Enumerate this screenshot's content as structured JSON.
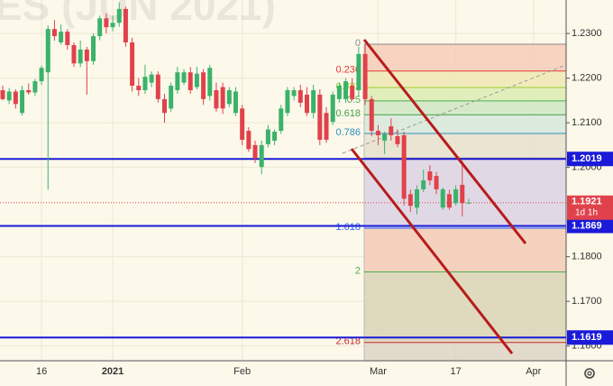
{
  "chart_data": {
    "type": "candlestick",
    "watermark": "ES (JUN 2021)",
    "categories": [
      null,
      null,
      null,
      null,
      null,
      null,
      "16",
      null,
      null,
      null,
      null,
      null,
      null,
      null,
      null,
      null,
      null,
      "2021",
      null,
      null,
      null,
      null,
      null,
      null,
      null,
      null,
      null,
      null,
      null,
      null,
      null,
      null,
      null,
      null,
      null,
      null,
      null,
      "Feb",
      null,
      null,
      null,
      null,
      null,
      null,
      null,
      null,
      null,
      null,
      null,
      null,
      null,
      null,
      null,
      null,
      null,
      null,
      null,
      null,
      "Mar",
      null,
      null,
      null,
      null,
      null,
      null,
      null,
      null,
      null,
      null,
      null,
      "17",
      null,
      null,
      null,
      null,
      null,
      null,
      null,
      null,
      null,
      null,
      null,
      "Apr"
    ],
    "open": [
      1.2173,
      1.215,
      1.217,
      1.2122,
      1.2173,
      1.2168,
      1.2193,
      1.2213,
      1.231,
      1.228,
      1.2304,
      1.2274,
      1.2233,
      1.2264,
      1.2238,
      1.2294,
      1.2334,
      1.2314,
      1.2324,
      1.2355,
      1.228,
      1.2183,
      1.2173,
      1.219,
      1.2208,
      1.2153,
      1.2132,
      1.2173,
      1.219,
      1.2213,
      1.218,
      1.2213,
      1.216,
      1.2173,
      1.218,
      1.2142,
      1.2122,
      1.2132,
      1.2082,
      1.205,
      1.2001,
      1.2052,
      1.206,
      1.2082,
      1.2122,
      1.216,
      1.2173,
      1.2163,
      1.2122,
      1.2163,
      1.2122,
      1.2102,
      1.2153,
      1.2153,
      1.2183,
      1.2173,
      1.2254,
      1.2153,
      1.2082,
      1.206,
      1.2092,
      1.207,
      1.2072,
      1.194,
      1.191,
      1.1951,
      1.1991,
      1.1981,
      1.191,
      1.194,
      1.192,
      1.1961,
      1.192,
      null,
      null,
      null,
      null,
      null,
      null,
      null,
      null,
      null,
      null
    ],
    "high": [
      1.2183,
      1.2178,
      1.2175,
      1.2183,
      1.2188,
      1.2198,
      1.2228,
      1.2318,
      1.233,
      1.232,
      1.231,
      1.228,
      1.2284,
      1.227,
      1.23,
      1.234,
      1.2345,
      1.234,
      1.237,
      1.236,
      1.229,
      1.22,
      1.223,
      1.2215,
      1.2215,
      1.2165,
      1.219,
      1.2225,
      1.222,
      1.2225,
      1.2225,
      1.222,
      1.223,
      1.219,
      1.219,
      1.218,
      1.218,
      1.214,
      1.209,
      1.206,
      1.206,
      1.2095,
      1.2085,
      1.214,
      1.218,
      1.218,
      1.2185,
      1.218,
      1.2185,
      1.2175,
      1.2135,
      1.217,
      1.219,
      1.22,
      1.22,
      1.227,
      1.2275,
      1.216,
      1.2095,
      1.208,
      1.211,
      1.2085,
      1.208,
      1.195,
      1.196,
      1.1995,
      1.2005,
      1.199,
      1.1955,
      1.195,
      1.196,
      1.2015,
      1.193,
      null,
      null,
      null,
      null,
      null,
      null,
      null,
      null,
      null,
      null
    ],
    "low": [
      1.215,
      1.2142,
      1.2132,
      1.2116,
      1.2163,
      1.216,
      1.2185,
      1.195,
      1.2284,
      1.2275,
      1.2264,
      1.2225,
      1.2225,
      1.2163,
      1.223,
      1.2285,
      1.23,
      1.2305,
      1.2315,
      1.227,
      1.217,
      1.216,
      1.2165,
      1.218,
      1.2145,
      1.21,
      1.2125,
      1.2165,
      1.2185,
      1.2165,
      1.2175,
      1.214,
      1.215,
      1.2125,
      1.212,
      1.2135,
      1.2115,
      1.205,
      1.2035,
      1.201,
      1.1985,
      1.2045,
      1.205,
      1.2075,
      1.2115,
      1.215,
      1.2135,
      1.2115,
      1.211,
      1.205,
      1.2055,
      1.2095,
      1.2145,
      1.2145,
      1.215,
      1.216,
      1.214,
      1.207,
      1.205,
      1.203,
      1.206,
      1.2045,
      1.1915,
      1.19,
      1.1895,
      1.1945,
      1.196,
      1.194,
      1.1905,
      1.1905,
      1.1915,
      1.189,
      1.1918,
      null,
      null,
      null,
      null,
      null,
      null,
      null,
      null,
      null,
      null
    ],
    "close": [
      1.2153,
      1.217,
      1.2142,
      1.2173,
      1.2168,
      1.2193,
      1.2223,
      1.231,
      1.2294,
      1.2304,
      1.2274,
      1.2233,
      1.2264,
      1.2238,
      1.2294,
      1.2334,
      1.2314,
      1.2324,
      1.2355,
      1.228,
      1.2183,
      1.2173,
      1.2203,
      1.2208,
      1.2153,
      1.2122,
      1.2183,
      1.2213,
      1.2213,
      1.2173,
      1.221,
      1.2153,
      1.2223,
      1.2132,
      1.2132,
      1.2173,
      1.217,
      1.2062,
      1.2041,
      1.202,
      1.205,
      1.2085,
      1.208,
      1.2132,
      1.2173,
      1.2173,
      1.2145,
      1.2122,
      1.2173,
      1.2062,
      1.2062,
      1.2163,
      1.2183,
      1.2193,
      1.2153,
      1.2254,
      1.2153,
      1.2082,
      1.2072,
      1.2075,
      1.2072,
      1.2052,
      1.193,
      1.1914,
      1.1951,
      1.1971,
      1.1971,
      1.1951,
      1.1951,
      1.191,
      1.1951,
      1.192,
      1.1921,
      null,
      null,
      null,
      null,
      null,
      null,
      null,
      null,
      null,
      null
    ],
    "up_color": "#3bb26b",
    "down_color": "#e0424b",
    "ylim": [
      1.1567,
      1.2375
    ],
    "yticks": [
      {
        "value": 1.23,
        "label": "1.2300"
      },
      {
        "value": 1.22,
        "label": "1.2200"
      },
      {
        "value": 1.21,
        "label": "1.2100"
      },
      {
        "value": 1.2,
        "label": "1.2000"
      },
      {
        "value": 1.18,
        "label": "1.1800"
      },
      {
        "value": 1.17,
        "label": "1.1700"
      },
      {
        "value": 1.16,
        "label": "1.1600"
      }
    ],
    "grid": true,
    "fib_levels": [
      {
        "ratio": 0,
        "price": 1.2276,
        "color": "#8a8a8a",
        "fill": "#f6cdb8"
      },
      {
        "ratio": 0.236,
        "price": 1.2216,
        "color": "#e53935",
        "fill": "#efe9b4"
      },
      {
        "ratio": 0.382,
        "price": 1.2179,
        "color": "#9ccc2f",
        "fill": "#dcecb4"
      },
      {
        "ratio": 0.5,
        "price": 1.2149,
        "color": "#4caf50",
        "fill": "#cfe8c3"
      },
      {
        "ratio": 0.618,
        "price": 1.2118,
        "color": "#43a047",
        "fill": "#d6e9da"
      },
      {
        "ratio": 0.786,
        "price": 1.2076,
        "color": "#2f8fc0",
        "fill": "#e6e0cf"
      },
      {
        "price": 1.2021,
        "color": "#8a8a8a",
        "fill": "#dbd4e4"
      },
      {
        "ratio": 1.618,
        "price": 1.1864,
        "color": "#2962ff",
        "fill": "#f3cbb6"
      },
      {
        "ratio": 2,
        "price": 1.1766,
        "color": "#4caf50",
        "fill": "#d9d5b6"
      },
      {
        "ratio": 2.618,
        "price": 1.1608,
        "color": "#c62828",
        "fill": "#ddd5c4"
      }
    ],
    "hlines": [
      1.2019,
      1.1869,
      1.1619
    ],
    "hline_color": "#1a1ad8",
    "last_price": 1.1921,
    "countdown": "1d 1h"
  }
}
